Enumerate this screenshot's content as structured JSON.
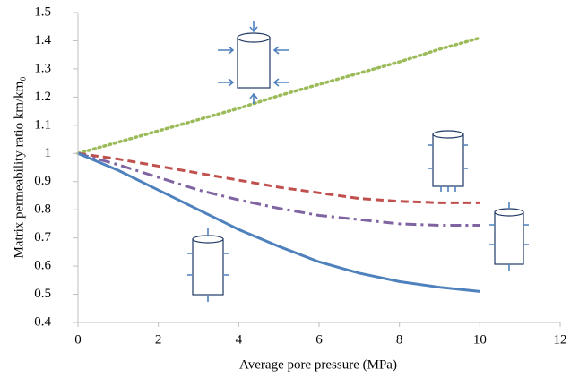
{
  "chart_data": {
    "type": "line",
    "xlabel": "Average pore pressure (MPa)",
    "ylabel": "Matrix permeability ratio km/km₀",
    "x": [
      0,
      1,
      2,
      3,
      4,
      5,
      6,
      7,
      8,
      9,
      10
    ],
    "series": [
      {
        "color": "#9bbb59",
        "style": "dotted",
        "values": [
          1.0,
          1.04,
          1.08,
          1.12,
          1.16,
          1.205,
          1.245,
          1.285,
          1.325,
          1.37,
          1.41
        ]
      },
      {
        "color": "#c0504d",
        "style": "dashed",
        "values": [
          1.0,
          0.98,
          0.955,
          0.93,
          0.905,
          0.88,
          0.86,
          0.84,
          0.83,
          0.825,
          0.825
        ]
      },
      {
        "color": "#8064a2",
        "style": "dashdot",
        "values": [
          1.0,
          0.96,
          0.915,
          0.87,
          0.835,
          0.805,
          0.78,
          0.765,
          0.75,
          0.745,
          0.745
        ]
      },
      {
        "color": "#4f81bd",
        "style": "solid",
        "values": [
          1.0,
          0.94,
          0.87,
          0.8,
          0.73,
          0.67,
          0.615,
          0.575,
          0.545,
          0.525,
          0.51
        ]
      }
    ],
    "xlim": [
      0,
      12
    ],
    "xticks": [
      0,
      2,
      4,
      6,
      8,
      10,
      12
    ],
    "ylim": [
      0.4,
      1.5
    ],
    "yticks": [
      0.4,
      0.5,
      0.6,
      0.7,
      0.8,
      0.9,
      1,
      1.1,
      1.2,
      1.3,
      1.4,
      1.5
    ]
  }
}
